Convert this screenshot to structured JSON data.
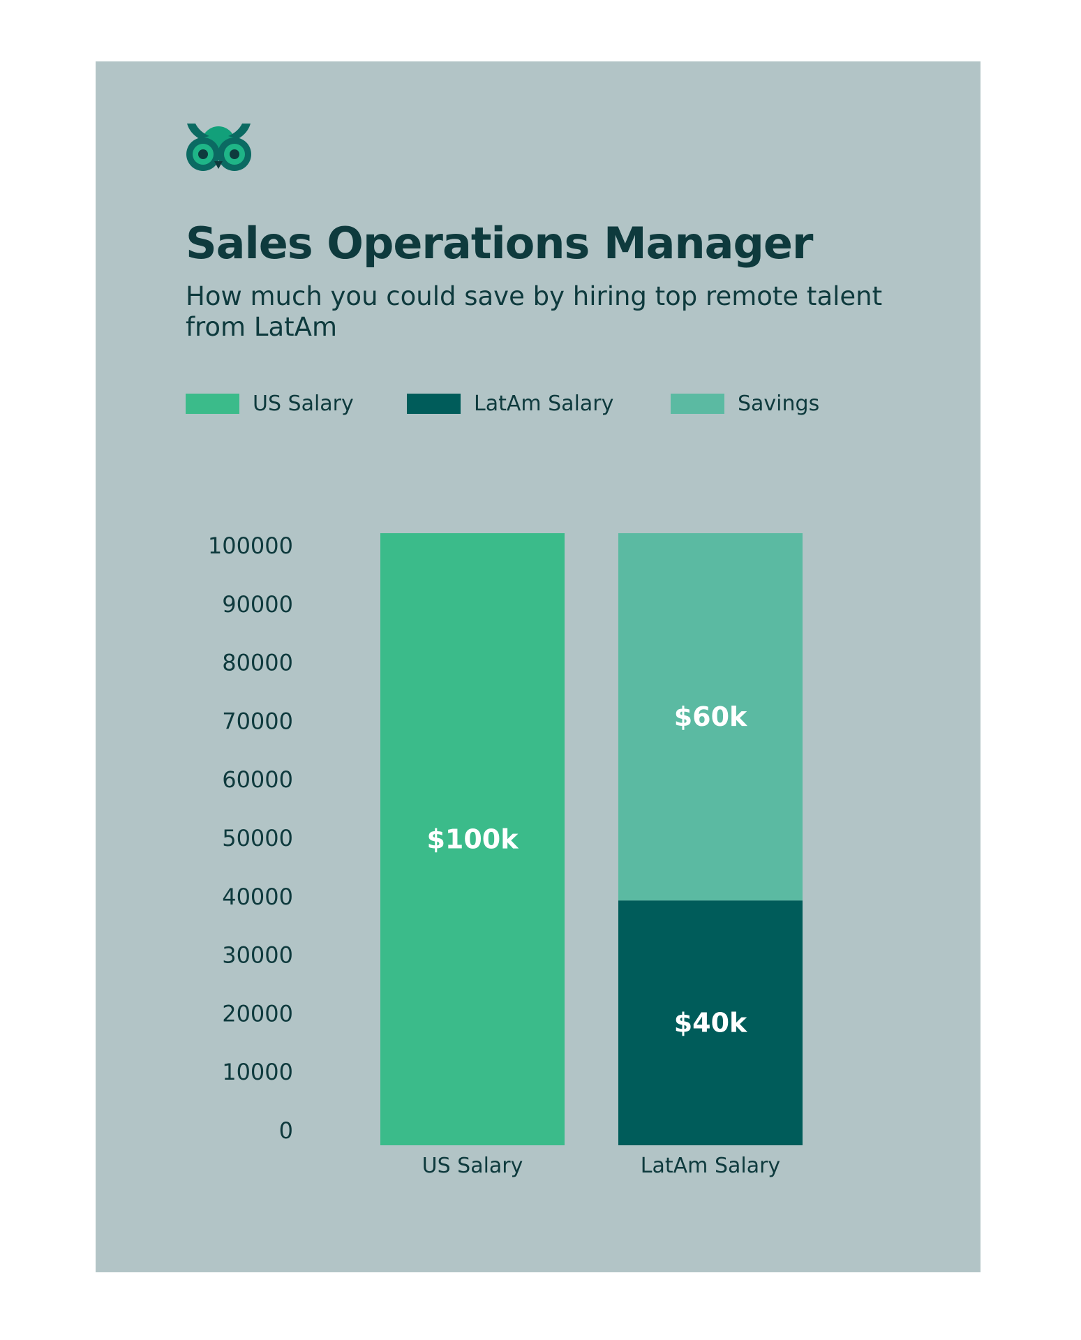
{
  "logo": {
    "icon": "owl-logo-icon",
    "colors": {
      "head": "#12a07a",
      "outer": "#0b6a62",
      "eyes": "#0e3a3d"
    }
  },
  "title": "Sales Operations Manager",
  "subtitle": "How much you could save by hiring top remote talent from LatAm",
  "chart_data": {
    "type": "bar",
    "stacked": true,
    "categories": [
      "US Salary",
      "LatAm Salary"
    ],
    "series": [
      {
        "name": "US Salary",
        "color": "#3bbb8a",
        "values": [
          100000,
          0
        ],
        "labels": [
          "$100k",
          ""
        ]
      },
      {
        "name": "LatAm Salary",
        "color": "#005c5a",
        "values": [
          0,
          40000
        ],
        "labels": [
          "",
          "$40k"
        ]
      },
      {
        "name": "Savings",
        "color": "#5bbaa2",
        "values": [
          0,
          60000
        ],
        "labels": [
          "",
          "$60k"
        ]
      }
    ],
    "yticks": [
      0,
      10000,
      20000,
      30000,
      40000,
      50000,
      60000,
      70000,
      80000,
      90000,
      100000
    ],
    "ylim": [
      0,
      100000
    ],
    "grid": false,
    "legend": "top-left",
    "background": "#b2c4c6"
  }
}
